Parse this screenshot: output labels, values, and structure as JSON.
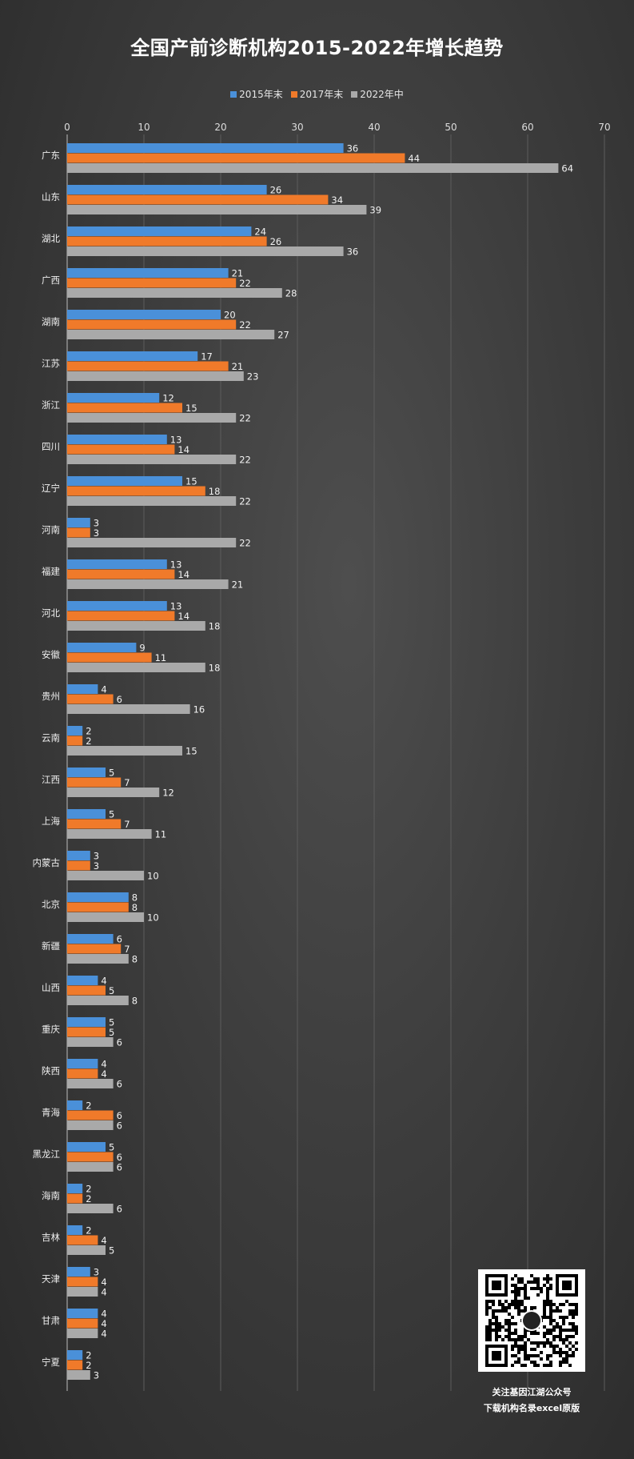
{
  "chart_data": {
    "type": "bar",
    "orientation": "horizontal",
    "title": "全国产前诊断机构2015-2022年增长趋势",
    "xlim": [
      0,
      70
    ],
    "x_ticks": [
      "0",
      "10",
      "20",
      "30",
      "40",
      "50",
      "60",
      "70"
    ],
    "grid": true,
    "legend_position": "top",
    "categories": [
      "广东",
      "山东",
      "湖北",
      "广西",
      "湖南",
      "江苏",
      "浙江",
      "四川",
      "辽宁",
      "河南",
      "福建",
      "河北",
      "安徽",
      "贵州",
      "云南",
      "江西",
      "上海",
      "内蒙古",
      "北京",
      "新疆",
      "山西",
      "重庆",
      "陕西",
      "青海",
      "黑龙江",
      "海南",
      "吉林",
      "天津",
      "甘肃",
      "宁夏"
    ],
    "series": [
      {
        "name": "2015年末",
        "color": "#4a90d9",
        "values": [
          36,
          26,
          24,
          21,
          20,
          17,
          12,
          13,
          15,
          3,
          13,
          13,
          9,
          4,
          2,
          5,
          5,
          3,
          8,
          6,
          4,
          5,
          4,
          2,
          5,
          2,
          2,
          3,
          4,
          2
        ]
      },
      {
        "name": "2017年末",
        "color": "#f07a2a",
        "values": [
          44,
          34,
          26,
          22,
          22,
          21,
          15,
          14,
          18,
          3,
          14,
          14,
          11,
          6,
          2,
          7,
          7,
          3,
          8,
          7,
          5,
          5,
          4,
          6,
          6,
          2,
          4,
          4,
          4,
          2
        ]
      },
      {
        "name": "2022年中",
        "color": "#a9a9a9",
        "values": [
          64,
          39,
          36,
          28,
          27,
          23,
          22,
          22,
          22,
          22,
          21,
          18,
          18,
          16,
          15,
          12,
          11,
          10,
          10,
          8,
          8,
          6,
          6,
          6,
          6,
          6,
          5,
          4,
          4,
          3
        ]
      }
    ]
  },
  "footer": {
    "line1": "关注基因江湖公众号",
    "line2": "下载机构名录excel原版"
  },
  "qr_code": {
    "icon": "qr-code-icon"
  }
}
